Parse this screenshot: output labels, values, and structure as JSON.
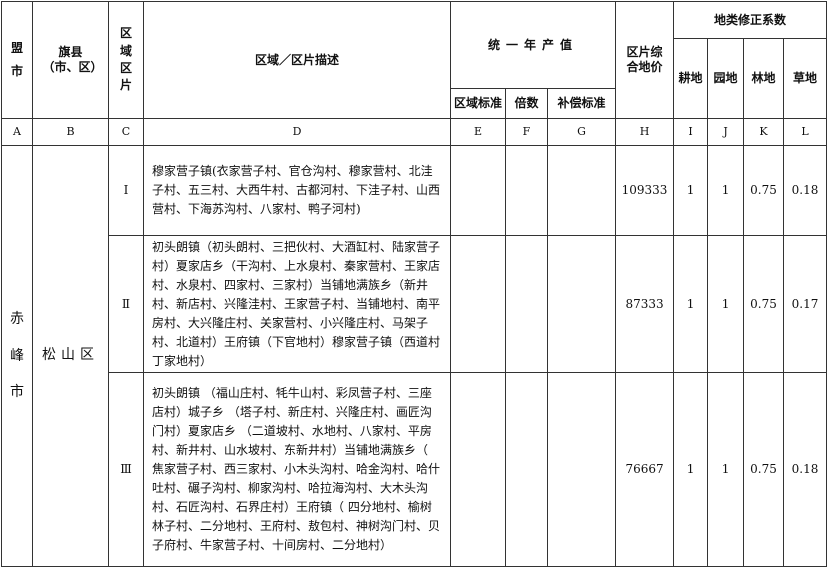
{
  "header": {
    "league_city": "盟市",
    "county": "旗县（市、区）",
    "zone": "区域区片",
    "description": "区域／区片描述",
    "annual_output": "统一年产值",
    "zone_standard": "区域标准",
    "multiple": "倍数",
    "compensation_standard": "补偿标准",
    "composite_price": "区片综合地价",
    "land_factor": "地类修正系数",
    "cultivated": "耕地",
    "garden": "园地",
    "forest": "林地",
    "grass": "草地"
  },
  "letters": [
    "A",
    "B",
    "C",
    "D",
    "E",
    "F",
    "G",
    "H",
    "I",
    "J",
    "K",
    "L"
  ],
  "city": "赤峰市",
  "county": "松山区",
  "rows": [
    {
      "zone": "Ⅰ",
      "desc": "穆家营子镇(衣家营子村、官仓沟村、穆家营村、北洼子村、五三村、大西牛村、古都河村、下洼子村、山西营村、下海苏沟村、八家村、鸭子河村)",
      "price": "109333",
      "cultivated": "1",
      "garden": "1",
      "forest": "0.75",
      "grass": "0.18"
    },
    {
      "zone": "Ⅱ",
      "desc": "初头朗镇（初头朗村、三把伙村、大酒缸村、陆家营子村）夏家店乡（干沟村、上水泉村、秦家营村、王家店村、水泉村、四家村、三家村）当铺地满族乡（新井村、新店村、兴隆洼村、王家营子村、当铺地村、南平房村、大兴隆庄村、关家营村、小兴隆庄村、马架子村、北道村）王府镇（下官地村）穆家营子镇（西道村丁家地村）",
      "price": "87333",
      "cultivated": "1",
      "garden": "1",
      "forest": "0.75",
      "grass": "0.17"
    },
    {
      "zone": "Ⅲ",
      "desc": "初头朗镇 （福山庄村、牦牛山村、彩凤营子村、三座店村）城子乡 （塔子村、新庄村、兴隆庄村、画匠沟门村）夏家店乡 （二道坡村、水地村、八家村、平房村、新井村、山水坡村、东新井村）当铺地满族乡（ 焦家营子村、西三家村、小木头沟村、哈金沟村、哈什吐村、碾子沟村、柳家沟村、哈拉海沟村、大木头沟村、石匠沟村、石界庄村）王府镇（ 四分地村、榆树林子村、二分地村、王府村、敖包村、神树沟门村、贝子府村、牛家营子村、十间房村、二分地村）",
      "price": "76667",
      "cultivated": "1",
      "garden": "1",
      "forest": "0.75",
      "grass": "0.18"
    }
  ]
}
